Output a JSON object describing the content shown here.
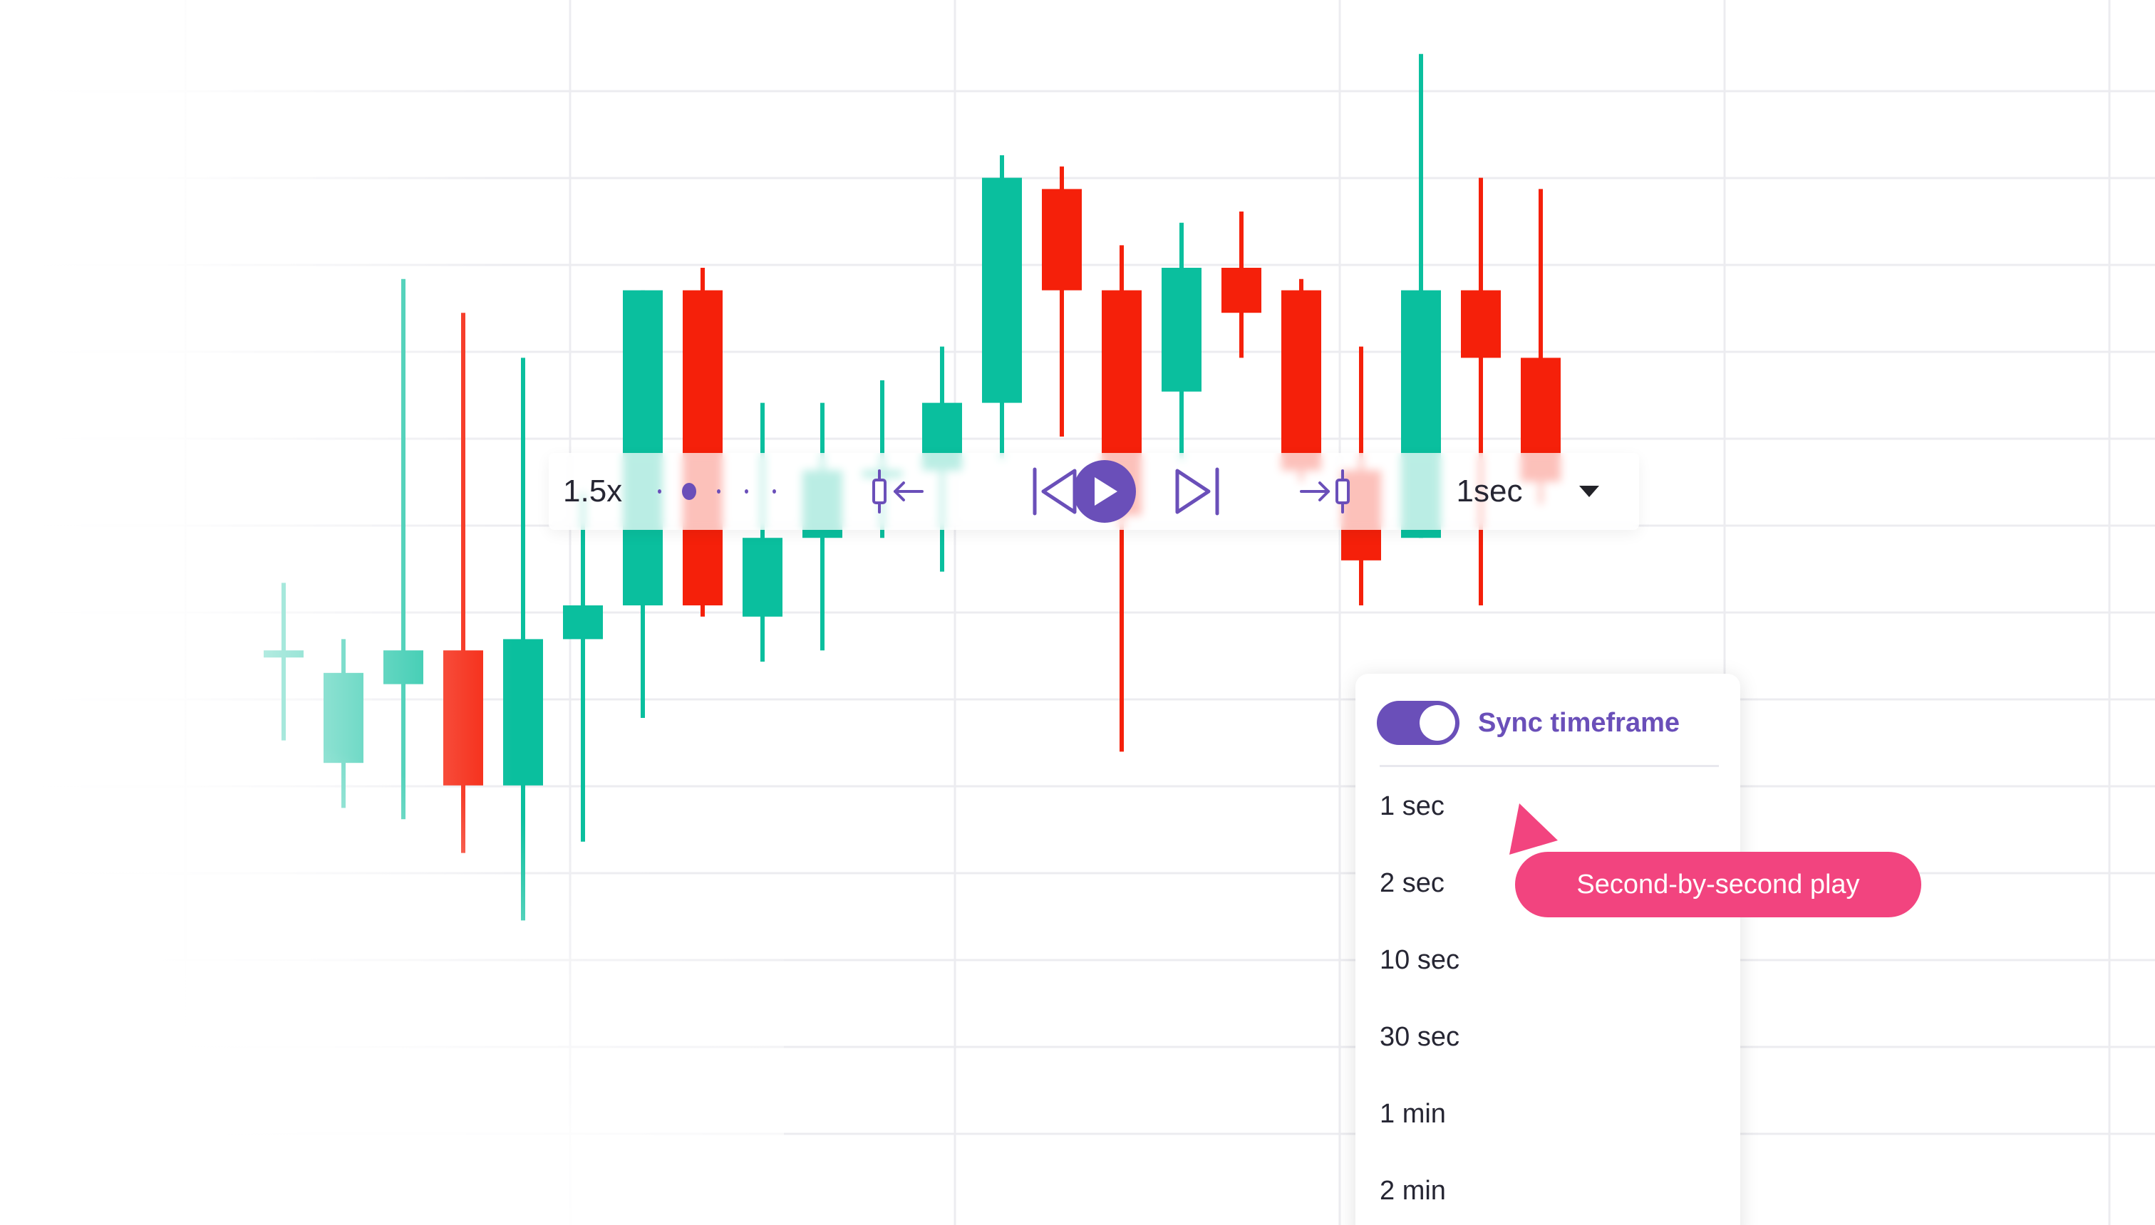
{
  "colors": {
    "bullish": "#0abf9e",
    "bearish": "#f5200a",
    "accent": "#6a4fb9",
    "callout": "#f2447f",
    "grid": "#ececf0"
  },
  "chart_data": {
    "type": "candlestick",
    "title": "",
    "xlabel": "",
    "ylabel": "",
    "grid": true,
    "ylim": [
      0,
      100
    ],
    "candles": [
      {
        "open": 46,
        "close": 46,
        "high": 52,
        "low": 38
      },
      {
        "open": 36,
        "close": 44,
        "high": 47,
        "low": 32
      },
      {
        "open": 43,
        "close": 46,
        "high": 79,
        "low": 31
      },
      {
        "open": 46,
        "close": 34,
        "high": 76,
        "low": 28
      },
      {
        "open": 34,
        "close": 47,
        "high": 72,
        "low": 22
      },
      {
        "open": 47,
        "close": 50,
        "high": 60,
        "low": 29
      },
      {
        "open": 50,
        "close": 78,
        "high": 78,
        "low": 40
      },
      {
        "open": 78,
        "close": 50,
        "high": 80,
        "low": 49
      },
      {
        "open": 49,
        "close": 56,
        "high": 68,
        "low": 45
      },
      {
        "open": 56,
        "close": 62,
        "high": 68,
        "low": 46
      },
      {
        "open": 62,
        "close": 62,
        "high": 70,
        "low": 56
      },
      {
        "open": 62,
        "close": 68,
        "high": 73,
        "low": 53
      },
      {
        "open": 68,
        "close": 88,
        "high": 90,
        "low": 63
      },
      {
        "open": 87,
        "close": 78,
        "high": 89,
        "low": 65
      },
      {
        "open": 78,
        "close": 58,
        "high": 82,
        "low": 37
      },
      {
        "open": 69,
        "close": 80,
        "high": 84,
        "low": 63
      },
      {
        "open": 80,
        "close": 76,
        "high": 85,
        "low": 72
      },
      {
        "open": 78,
        "close": 62,
        "high": 79,
        "low": 61
      },
      {
        "open": 62,
        "close": 54,
        "high": 73,
        "low": 50
      },
      {
        "open": 56,
        "close": 78,
        "high": 99,
        "low": 56
      },
      {
        "open": 78,
        "close": 72,
        "high": 88,
        "low": 50
      },
      {
        "open": 72,
        "close": 61,
        "high": 87,
        "low": 59
      }
    ]
  },
  "toolbar": {
    "speed": "1.5x",
    "speed_position": 2,
    "speed_steps": 5,
    "timeframe": "1sec",
    "icons": {
      "jump_to_bar": "candle-arrow-left-icon",
      "step_back": "step-back-icon",
      "play": "play-icon",
      "step_forward": "step-forward-icon",
      "jump_to_realtime": "arrow-candle-right-icon",
      "dropdown": "caret-down-icon"
    }
  },
  "dropdown": {
    "sync_label": "Sync timeframe",
    "sync_enabled": true,
    "options": [
      "1 sec",
      "2 sec",
      "10 sec",
      "30 sec",
      "1 min",
      "2 min"
    ]
  },
  "callout": {
    "text": "Second-by-second play"
  }
}
